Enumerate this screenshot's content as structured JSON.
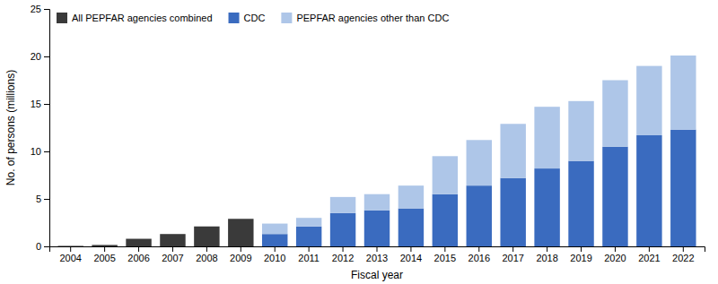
{
  "chart_data": {
    "type": "bar",
    "stacked": true,
    "categories": [
      "2004",
      "2005",
      "2006",
      "2007",
      "2008",
      "2009",
      "2010",
      "2011",
      "2012",
      "2013",
      "2014",
      "2015",
      "2016",
      "2017",
      "2018",
      "2019",
      "2020",
      "2021",
      "2022"
    ],
    "series": [
      {
        "name": "All PEPFAR agencies combined",
        "color": "#3a3a3a",
        "values": [
          0.05,
          0.15,
          0.8,
          1.3,
          2.1,
          2.9,
          null,
          null,
          null,
          null,
          null,
          null,
          null,
          null,
          null,
          null,
          null,
          null,
          null
        ]
      },
      {
        "name": "CDC",
        "color": "#3a6bbf",
        "values": [
          null,
          null,
          null,
          null,
          null,
          null,
          1.3,
          2.1,
          3.5,
          3.8,
          4.0,
          5.5,
          6.4,
          7.2,
          8.2,
          9.0,
          10.5,
          11.7,
          12.3
        ]
      },
      {
        "name": "PEPFAR agencies other than CDC",
        "color": "#aec6e8",
        "values": [
          null,
          null,
          null,
          null,
          null,
          null,
          1.1,
          0.9,
          1.7,
          1.7,
          2.4,
          4.0,
          4.8,
          5.7,
          6.5,
          6.3,
          7.0,
          7.3,
          7.8
        ]
      }
    ],
    "xlabel": "Fiscal year",
    "ylabel": "No. of persons (millions)",
    "ylim": [
      0,
      25
    ],
    "yticks": [
      0,
      5,
      10,
      15,
      20,
      25
    ],
    "grid": false,
    "legend": "upper left"
  }
}
